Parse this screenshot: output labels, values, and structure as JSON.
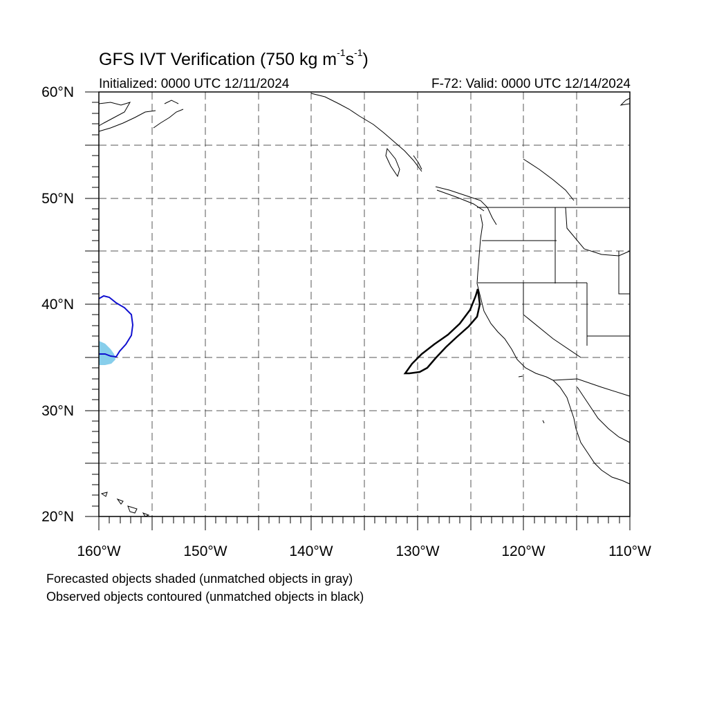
{
  "header": {
    "title_main": "GFS IVT Verification (750 kg m",
    "title_sup1": "-1",
    "title_mid": "s",
    "title_sup2": "-1",
    "title_end": ")",
    "initialized": "Initialized: 0000 UTC 12/11/2024",
    "valid": "F-72: Valid: 0000 UTC 12/14/2024"
  },
  "axes": {
    "lat_labels": [
      "60°N",
      "50°N",
      "40°N",
      "30°N",
      "20°N"
    ],
    "lon_labels": [
      "160°W",
      "150°W",
      "140°W",
      "130°W",
      "120°W",
      "110°W"
    ],
    "lat_range": [
      20,
      60
    ],
    "lon_range": [
      -160,
      -110
    ],
    "grid": "dashed, every 5 degrees"
  },
  "legend_notes": {
    "line1": "Forecasted objects shaded (unmatched objects in gray)",
    "line2": "Observed objects contoured (unmatched objects in black)"
  },
  "objects": [
    {
      "kind": "forecast-shaded",
      "matched": true,
      "color": "#87ceeb",
      "location": "near 35N 160W"
    },
    {
      "kind": "observed-contour",
      "matched": true,
      "color": "#1010d0",
      "location": "near 37N 158W"
    },
    {
      "kind": "observed-contour",
      "matched": false,
      "color": "#000000",
      "location": "off California coast, 34N-41N"
    }
  ],
  "colors": {
    "forecast_matched": "#87ceeb",
    "observed_matched": "#1010d0",
    "unmatched_observed": "#000000"
  }
}
